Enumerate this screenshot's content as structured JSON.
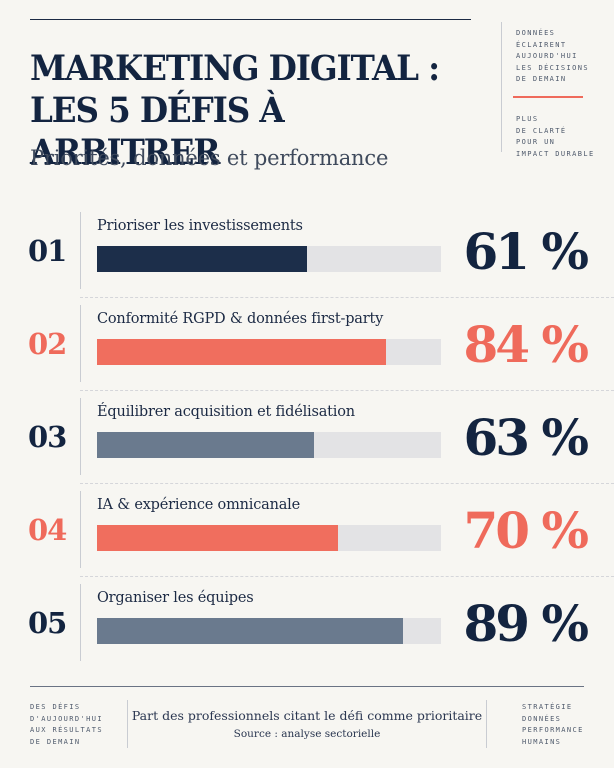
{
  "header": {
    "title_line1": "MARKETING DIGITAL :",
    "title_line2": "LES 5 DÉFIS À ARBITRER",
    "subtitle": "Priorités, données et performance"
  },
  "side_notes": {
    "top_right_1": "DONNÉES\nÉCLAIRENT\nAUJOURD'HUI\nLES DÉCISIONS\nDE DEMAIN",
    "top_right_2": "PLUS\nDE CLARTÉ\nPOUR UN\nIMPACT DURABLE"
  },
  "footer": {
    "left_note": "DES DÉFIS\nD'AUJOURD'HUI\nAUX RÉSULTATS\nDE DEMAIN",
    "caption": "Part des professionnels citant le défi comme prioritaire",
    "source": "Source : analyse sectorielle",
    "right_note": "STRATÉGIE\nDONNÉES\nPERFORMANCE\nHUMAINS"
  },
  "colors": {
    "navy": "#132440",
    "coral": "#ef6a5b",
    "slate": "#6a7a8e",
    "track": "#e3e3e5"
  },
  "chart_data": {
    "type": "bar",
    "orientation": "horizontal",
    "ylim": [
      0,
      100
    ],
    "categories": [
      "Prioriser les investissements",
      "Conformité RGPD & données first-party",
      "Équilibrer acquisition et fidélisation",
      "IA & expérience omnicanale",
      "Organiser les équipes"
    ],
    "numbers": [
      "01",
      "02",
      "03",
      "04",
      "05"
    ],
    "values": [
      61,
      84,
      63,
      70,
      89
    ],
    "value_labels": [
      "61 %",
      "84 %",
      "63 %",
      "70 %",
      "89 %"
    ],
    "bar_colors": [
      "#1c2e4a",
      "#f06e5e",
      "#6a7a8e",
      "#f06e5e",
      "#6a7a8e"
    ],
    "label_colors": [
      "#132440",
      "#ef6a5b",
      "#132440",
      "#ef6a5b",
      "#132440"
    ]
  }
}
